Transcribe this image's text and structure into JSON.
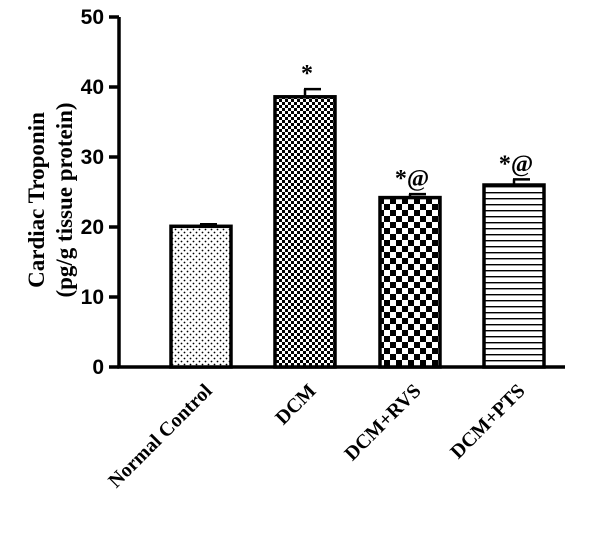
{
  "chart_data": {
    "type": "bar",
    "title": "",
    "xlabel": "",
    "ylabel_lines": [
      "Cardiac Troponin",
      "(pg/g tissue protein)"
    ],
    "ylim": [
      0,
      50
    ],
    "yticks": [
      0,
      10,
      20,
      30,
      40,
      50
    ],
    "ytick_labels": [
      "0",
      "10",
      "20",
      "30",
      "40",
      "50"
    ],
    "categories": [
      "Normal Control",
      "DCM",
      "DCM+RVS",
      "DCM+PTS"
    ],
    "values": [
      20.1,
      38.6,
      24.2,
      26.0
    ],
    "errors": [
      0.3,
      1.1,
      0.5,
      0.8
    ],
    "annotations": [
      "",
      "*",
      "*@",
      "*@"
    ],
    "patterns": [
      "dots",
      "fine-checker",
      "coarse-checker",
      "horizontal-lines"
    ],
    "grid": false,
    "legend": "none"
  }
}
